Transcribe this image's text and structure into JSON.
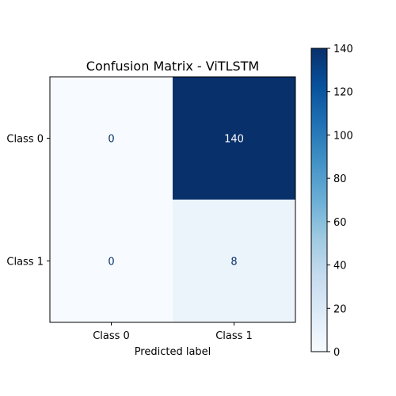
{
  "chart_data": {
    "type": "heatmap",
    "title": "Confusion Matrix - ViTLSTM",
    "xlabel": "Predicted label",
    "ylabel": "",
    "x_categories": [
      "Class 0",
      "Class 1"
    ],
    "y_categories": [
      "Class 0",
      "Class 1"
    ],
    "values": [
      [
        0,
        140
      ],
      [
        0,
        8
      ]
    ],
    "colorbar": {
      "min": 0,
      "max": 140,
      "ticks": [
        0,
        20,
        40,
        60,
        80,
        100,
        120,
        140
      ],
      "colormap": "Blues",
      "low_color": "#f7fbff",
      "high_color": "#08306b"
    }
  }
}
